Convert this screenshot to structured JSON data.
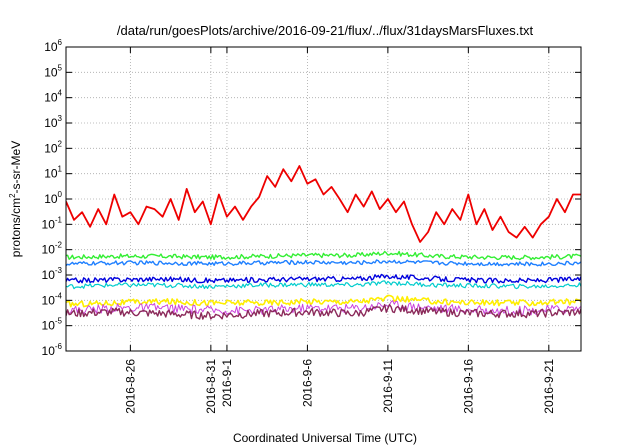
{
  "chart_data": {
    "type": "line",
    "title": "/data/run/goesPlots/archive/2016-09-21/flux/../flux/31daysMarsFluxes.txt",
    "xlabel": "Coordinated Universal Time (UTC)",
    "ylabel": {
      "base": "protons/cm",
      "sup": "2",
      "rest": "-s-sr-MeV"
    },
    "yscale": "log",
    "ylim": [
      1e-06,
      1000000.0
    ],
    "xlim": [
      "2016-08-22",
      "2016-09-23"
    ],
    "grid": true,
    "yticks": [
      {
        "value": -6,
        "base": "10",
        "exp": "-6"
      },
      {
        "value": -5,
        "base": "10",
        "exp": "-5"
      },
      {
        "value": -4,
        "base": "10",
        "exp": "-4"
      },
      {
        "value": -3,
        "base": "10",
        "exp": "-3"
      },
      {
        "value": -2,
        "base": "10",
        "exp": "-2"
      },
      {
        "value": -1,
        "base": "10",
        "exp": "-1"
      },
      {
        "value": 0,
        "base": "10",
        "exp": "0"
      },
      {
        "value": 1,
        "base": "10",
        "exp": "1"
      },
      {
        "value": 2,
        "base": "10",
        "exp": "2"
      },
      {
        "value": 3,
        "base": "10",
        "exp": "3"
      },
      {
        "value": 4,
        "base": "10",
        "exp": "4"
      },
      {
        "value": 5,
        "base": "10",
        "exp": "5"
      },
      {
        "value": 6,
        "base": "10",
        "exp": "6"
      }
    ],
    "xticks": [
      {
        "date": "2016-08-26",
        "label": "2016-8-26"
      },
      {
        "date": "2016-08-31",
        "label": "2016-8-31"
      },
      {
        "date": "2016-09-01",
        "label": "2016-9-1"
      },
      {
        "date": "2016-09-06",
        "label": "2016-9-6"
      },
      {
        "date": "2016-09-11",
        "label": "2016-9-11"
      },
      {
        "date": "2016-09-16",
        "label": "2016-9-16"
      },
      {
        "date": "2016-09-21",
        "label": "2016-9-21"
      }
    ],
    "series": [
      {
        "color": "#33ee33",
        "width": 1.4,
        "jitter": 0.09,
        "x": [
          "2016-08-22",
          "2016-08-25",
          "2016-08-28",
          "2016-08-31",
          "2016-09-03",
          "2016-09-06",
          "2016-09-09",
          "2016-09-11",
          "2016-09-14",
          "2016-09-17",
          "2016-09-20",
          "2016-09-23"
        ],
        "y": [
          0.005,
          0.0055,
          0.0055,
          0.005,
          0.0055,
          0.006,
          0.006,
          0.0075,
          0.0055,
          0.005,
          0.005,
          0.0055
        ]
      },
      {
        "color": "#1e7fff",
        "width": 1.4,
        "jitter": 0.08,
        "x": [
          "2016-08-22",
          "2016-08-25",
          "2016-08-28",
          "2016-08-31",
          "2016-09-03",
          "2016-09-06",
          "2016-09-09",
          "2016-09-11",
          "2016-09-14",
          "2016-09-17",
          "2016-09-20",
          "2016-09-23"
        ],
        "y": [
          0.0027,
          0.003,
          0.003,
          0.0028,
          0.003,
          0.0032,
          0.003,
          0.0035,
          0.003,
          0.0028,
          0.0027,
          0.003
        ]
      },
      {
        "color": "#0000dd",
        "width": 1.4,
        "jitter": 0.1,
        "x": [
          "2016-08-22",
          "2016-08-25",
          "2016-08-28",
          "2016-08-31",
          "2016-09-03",
          "2016-09-06",
          "2016-09-09",
          "2016-09-11",
          "2016-09-14",
          "2016-09-17",
          "2016-09-20",
          "2016-09-23"
        ],
        "y": [
          0.0006,
          0.00065,
          0.0007,
          0.0006,
          0.00065,
          0.0007,
          0.0007,
          0.0009,
          0.0007,
          0.0006,
          0.0006,
          0.0007
        ]
      },
      {
        "color": "#00cccc",
        "width": 1.2,
        "jitter": 0.09,
        "x": [
          "2016-08-22",
          "2016-08-25",
          "2016-08-28",
          "2016-08-31",
          "2016-09-03",
          "2016-09-06",
          "2016-09-09",
          "2016-09-11",
          "2016-09-14",
          "2016-09-17",
          "2016-09-20",
          "2016-09-23"
        ],
        "y": [
          0.00035,
          0.0004,
          0.0004,
          0.00035,
          0.0004,
          0.00042,
          0.0004,
          0.0005,
          0.0004,
          0.00037,
          0.00035,
          0.0004
        ]
      },
      {
        "color": "#ffee00",
        "width": 1.6,
        "jitter": 0.12,
        "x": [
          "2016-08-22",
          "2016-08-25",
          "2016-08-28",
          "2016-08-31",
          "2016-09-03",
          "2016-09-06",
          "2016-09-09",
          "2016-09-11",
          "2016-09-14",
          "2016-09-17",
          "2016-09-20",
          "2016-09-23"
        ],
        "y": [
          7e-05,
          8e-05,
          9e-05,
          8e-05,
          8e-05,
          9e-05,
          9e-05,
          0.00012,
          9e-05,
          8e-05,
          8e-05,
          9e-05
        ]
      },
      {
        "color": "#cc44dd",
        "width": 1.0,
        "jitter": 0.18,
        "x": [
          "2016-08-22",
          "2016-08-25",
          "2016-08-28",
          "2016-08-31",
          "2016-09-03",
          "2016-09-06",
          "2016-09-09",
          "2016-09-11",
          "2016-09-14",
          "2016-09-17",
          "2016-09-20",
          "2016-09-23"
        ],
        "y": [
          4e-05,
          5e-05,
          5e-05,
          4e-05,
          4e-05,
          5e-05,
          5e-05,
          7e-05,
          5e-05,
          4e-05,
          4e-05,
          5e-05
        ]
      },
      {
        "color": "#8b2a5a",
        "width": 1.4,
        "jitter": 0.16,
        "x": [
          "2016-08-22",
          "2016-08-25",
          "2016-08-28",
          "2016-08-31",
          "2016-09-03",
          "2016-09-06",
          "2016-09-09",
          "2016-09-11",
          "2016-09-14",
          "2016-09-17",
          "2016-09-20",
          "2016-09-23"
        ],
        "y": [
          3e-05,
          3.5e-05,
          3e-05,
          2.5e-05,
          3e-05,
          3.5e-05,
          3e-05,
          5e-05,
          3.5e-05,
          3e-05,
          3e-05,
          3.5e-05
        ]
      },
      {
        "color": "#ee0000",
        "width": 1.8,
        "jitter": 0.0,
        "x": [
          "2016-08-22",
          "2016-08-22.5",
          "2016-08-23",
          "2016-08-23.5",
          "2016-08-24",
          "2016-08-24.5",
          "2016-08-25",
          "2016-08-25.5",
          "2016-08-26",
          "2016-08-26.5",
          "2016-08-27",
          "2016-08-27.5",
          "2016-08-28",
          "2016-08-28.5",
          "2016-08-29",
          "2016-08-29.5",
          "2016-08-30",
          "2016-08-30.5",
          "2016-08-31",
          "2016-08-31.5",
          "2016-09-01",
          "2016-09-01.5",
          "2016-09-02",
          "2016-09-02.5",
          "2016-09-03",
          "2016-09-03.5",
          "2016-09-04",
          "2016-09-04.5",
          "2016-09-05",
          "2016-09-05.5",
          "2016-09-06",
          "2016-09-06.5",
          "2016-09-07",
          "2016-09-07.5",
          "2016-09-08",
          "2016-09-08.5",
          "2016-09-09",
          "2016-09-09.5",
          "2016-09-10",
          "2016-09-10.5",
          "2016-09-11",
          "2016-09-11.5",
          "2016-09-12",
          "2016-09-12.5",
          "2016-09-13",
          "2016-09-13.5",
          "2016-09-14",
          "2016-09-14.5",
          "2016-09-15",
          "2016-09-15.5",
          "2016-09-16",
          "2016-09-16.5",
          "2016-09-17",
          "2016-09-17.5",
          "2016-09-18",
          "2016-09-18.5",
          "2016-09-19",
          "2016-09-19.5",
          "2016-09-20",
          "2016-09-20.5",
          "2016-09-21",
          "2016-09-21.5",
          "2016-09-22",
          "2016-09-22.5",
          "2016-09-23"
        ],
        "y": [
          0.8,
          0.15,
          0.3,
          0.08,
          0.4,
          0.1,
          1.5,
          0.2,
          0.3,
          0.1,
          0.5,
          0.4,
          0.2,
          1.0,
          0.15,
          2.5,
          0.3,
          0.8,
          0.1,
          1.5,
          0.2,
          0.5,
          0.15,
          0.5,
          1.2,
          8.0,
          3.0,
          15.0,
          5.0,
          20.0,
          4.0,
          6.0,
          1.5,
          3.0,
          1.0,
          0.3,
          1.5,
          0.5,
          2.0,
          0.4,
          1.0,
          0.3,
          0.8,
          0.1,
          0.02,
          0.05,
          0.3,
          0.1,
          0.4,
          0.15,
          1.5,
          0.1,
          0.4,
          0.06,
          0.2,
          0.05,
          0.03,
          0.08,
          0.03,
          0.1,
          0.2,
          1.0,
          0.3,
          1.5,
          1.5
        ]
      }
    ]
  }
}
